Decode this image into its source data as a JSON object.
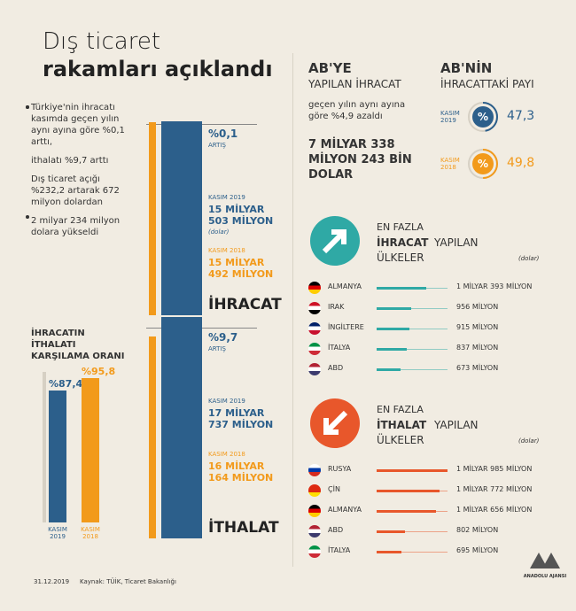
{
  "header": {
    "title_line1": "Dış ticaret",
    "title_line2": "rakamları açıklandı"
  },
  "summary": {
    "bullets": [
      {
        "lines": [
          "Türkiye'nin ihracatı kasımda geçen yılın aynı ayına göre %0,1 arttı,",
          "ithalatı %9,7 arttı"
        ]
      },
      {
        "lines": [
          "Dış ticaret açığı %232,2 artarak 672 milyon dolardan",
          "2 milyar 234 milyon dolara yükseldi"
        ]
      }
    ]
  },
  "trade": [
    {
      "name": "İHRACAT",
      "change": "%0,1",
      "change_label": "ARTIŞ",
      "current": {
        "label": "KASIM 2019",
        "value": 15503,
        "value_label": "15 MİLYAR 503 MİLYON",
        "unit": "(dolar)"
      },
      "previous": {
        "label": "KASIM 2018",
        "value": 15492,
        "value_label": "15 MİLYAR 492 MİLYON"
      }
    },
    {
      "name": "İTHALAT",
      "change": "%9,7",
      "change_label": "ARTIŞ",
      "current": {
        "label": "KASIM 2019",
        "value": 17737,
        "value_label": "17 MİLYAR 737 MİLYON"
      },
      "previous": {
        "label": "KASIM 2018",
        "value": 16164,
        "value_label": "16 MİLYAR 164 MİLYON"
      }
    }
  ],
  "coverage": {
    "title": "İHRACATIN İTHALATI KARŞILAMA ORANI",
    "bars": [
      {
        "label": "KASIM 2019",
        "value": 87.4,
        "value_label": "%87,4",
        "color": "#2c5f8b"
      },
      {
        "label": "KASIM 2018",
        "value": 95.8,
        "value_label": "%95,8",
        "color": "#f29a1b"
      }
    ]
  },
  "eu_exports": {
    "title_line1": "AB'YE",
    "title_line2": "YAPILAN İHRACAT",
    "note": "geçen yılın aynı ayına göre %4,9 azaldı",
    "amount": "7 MİLYAR 338 MİLYON 243 BİN DOLAR"
  },
  "eu_share": {
    "title_line1": "AB'NİN",
    "title_line2": "İHRACATTAKİ PAYI",
    "icon": "%",
    "rows": [
      {
        "label": "KASIM 2019",
        "value": 47.3,
        "value_label": "47,3",
        "color": "#2c5f8b"
      },
      {
        "label": "KASIM 2018",
        "value": 49.8,
        "value_label": "49,8",
        "color": "#f29a1b"
      }
    ]
  },
  "top_exports": {
    "line1": "EN FAZLA",
    "bold": "İHRACAT",
    "rest": "YAPILAN",
    "line3": "ÜLKELER",
    "unit": "(dolar)",
    "color": "#2fa9a5",
    "countries": [
      "ALMANYA",
      "IRAK",
      "İNGİLTERE",
      "İTALYA",
      "ABD"
    ],
    "values": [
      1393,
      956,
      915,
      837,
      673
    ],
    "value_labels": [
      "1 MİLYAR 393 MİLYON",
      "956 MİLYON",
      "915 MİLYON",
      "837 MİLYON",
      "673 MİLYON"
    ]
  },
  "top_imports": {
    "line1": "EN FAZLA",
    "bold": "İTHALAT",
    "rest": "YAPILAN",
    "line3": "ÜLKELER",
    "unit": "(dolar)",
    "color": "#e8572b",
    "countries": [
      "RUSYA",
      "ÇİN",
      "ALMANYA",
      "ABD",
      "İTALYA"
    ],
    "values": [
      1985,
      1772,
      1656,
      802,
      695
    ],
    "value_labels": [
      "1 MİLYAR 985 MİLYON",
      "1 MİLYAR 772 MİLYON",
      "1 MİLYAR 656 MİLYON",
      "802 MİLYON",
      "695 MİLYON"
    ]
  },
  "footer": {
    "date": "31.12.2019",
    "source": "Kaynak: TÜİK, Ticaret Bakanlığı",
    "logo": "ANADOLU AJANSI"
  }
}
